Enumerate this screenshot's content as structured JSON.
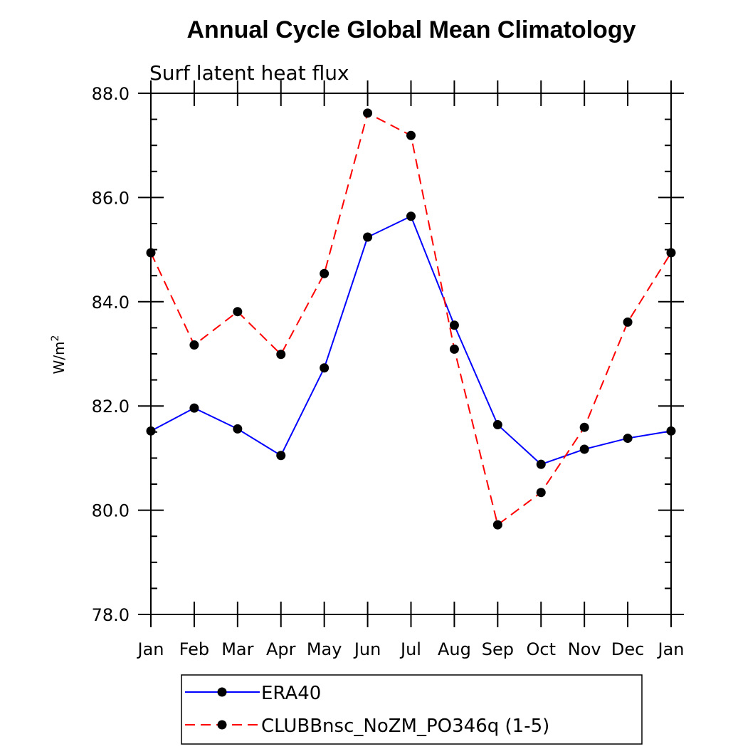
{
  "chart_data": {
    "type": "line",
    "title": "Annual Cycle Global Mean Climatology",
    "subtitle": "Surf latent heat flux",
    "ylabel": "W/m",
    "ylabel_sup": "2",
    "xlabel": "",
    "categories": [
      "Jan",
      "Feb",
      "Mar",
      "Apr",
      "May",
      "Jun",
      "Jul",
      "Aug",
      "Sep",
      "Oct",
      "Nov",
      "Dec",
      "Jan"
    ],
    "ylim": [
      78.0,
      88.0
    ],
    "yticks": [
      "78.0",
      "80.0",
      "82.0",
      "84.0",
      "86.0",
      "88.0"
    ],
    "grid": false,
    "legend_position": "bottom",
    "series": [
      {
        "name": "ERA40",
        "color": "#0000ff",
        "dash": "solid",
        "marker": "circle",
        "values": [
          81.52,
          81.96,
          81.56,
          81.05,
          82.73,
          85.24,
          85.64,
          83.55,
          81.64,
          80.88,
          81.17,
          81.38,
          81.52
        ]
      },
      {
        "name": "CLUBBnsc_NoZM_PO346q (1-5)",
        "color": "#ff0000",
        "dash": "dashed",
        "marker": "circle",
        "values": [
          84.94,
          83.17,
          83.81,
          82.99,
          84.54,
          87.62,
          87.19,
          83.09,
          79.72,
          80.34,
          81.59,
          83.61,
          84.94
        ]
      }
    ]
  }
}
